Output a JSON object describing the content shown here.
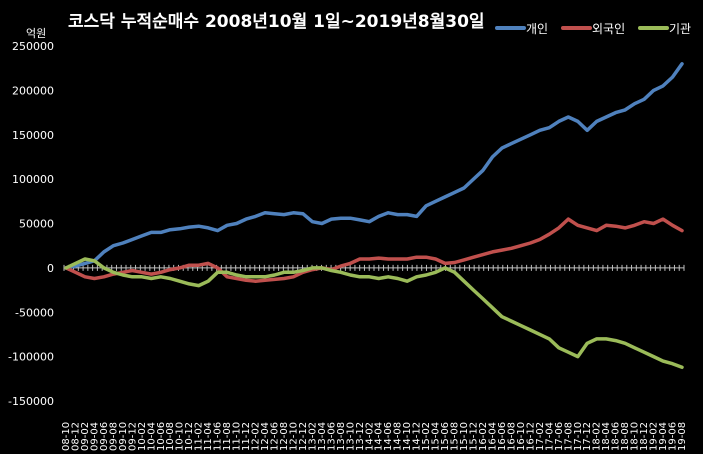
{
  "chart_data": {
    "type": "line",
    "title": "코스닥 누적순매수 2008년10월 1일~2019년8월30일",
    "unit_label": "억원",
    "ylim": [
      -150000,
      250000
    ],
    "yticks": [
      "250000",
      "200000",
      "150000",
      "100000",
      "50000",
      "0",
      "-50000",
      "-100000",
      "-150000"
    ],
    "grid": false,
    "legend_position": "top-right",
    "x": [
      "08-10",
      "08-12",
      "09-02",
      "09-04",
      "09-06",
      "09-08",
      "09-10",
      "09-12",
      "10-02",
      "10-04",
      "10-06",
      "10-08",
      "10-10",
      "10-12",
      "11-02",
      "11-04",
      "11-06",
      "11-08",
      "11-10",
      "11-12",
      "12-02",
      "12-04",
      "12-06",
      "12-08",
      "12-10",
      "12-12",
      "13-02",
      "13-04",
      "13-06",
      "13-08",
      "13-10",
      "13-12",
      "14-02",
      "14-04",
      "14-06",
      "14-08",
      "14-10",
      "14-12",
      "15-02",
      "15-04",
      "15-06",
      "15-08",
      "15-10",
      "15-12",
      "16-02",
      "16-04",
      "16-06",
      "16-08",
      "16-10",
      "16-12",
      "17-02",
      "17-04",
      "17-06",
      "17-08",
      "17-10",
      "17-12",
      "18-02",
      "18-04",
      "18-06",
      "18-08",
      "18-10",
      "18-12",
      "19-02",
      "19-04",
      "19-06",
      "19-08"
    ],
    "series": [
      {
        "name": "개인",
        "color": "#4f81bd",
        "values": [
          0,
          2000,
          5000,
          8000,
          18000,
          25000,
          28000,
          32000,
          36000,
          40000,
          40000,
          43000,
          44000,
          46000,
          47000,
          45000,
          42000,
          48000,
          50000,
          55000,
          58000,
          62000,
          61000,
          60000,
          62000,
          61000,
          52000,
          50000,
          55000,
          56000,
          56000,
          54000,
          52000,
          58000,
          62000,
          60000,
          60000,
          58000,
          70000,
          75000,
          80000,
          85000,
          90000,
          100000,
          110000,
          125000,
          135000,
          140000,
          145000,
          150000,
          155000,
          158000,
          165000,
          170000,
          165000,
          155000,
          165000,
          170000,
          175000,
          178000,
          185000,
          190000,
          200000,
          205000,
          215000,
          230000
        ]
      },
      {
        "name": "외국인",
        "color": "#c0504d",
        "values": [
          0,
          -5000,
          -10000,
          -12000,
          -10000,
          -7000,
          -5000,
          -3000,
          -5000,
          -7000,
          -5000,
          -2000,
          0,
          3000,
          3000,
          5000,
          0,
          -10000,
          -12000,
          -14000,
          -15000,
          -14000,
          -13000,
          -12000,
          -10000,
          -5000,
          -2000,
          0,
          -2000,
          2000,
          5000,
          10000,
          10000,
          11000,
          10000,
          10000,
          10000,
          12000,
          12000,
          10000,
          5000,
          6000,
          9000,
          12000,
          15000,
          18000,
          20000,
          22000,
          25000,
          28000,
          32000,
          38000,
          45000,
          55000,
          48000,
          45000,
          42000,
          48000,
          47000,
          45000,
          48000,
          52000,
          50000,
          55000,
          48000,
          42000
        ]
      },
      {
        "name": "기관",
        "color": "#9bbb59",
        "values": [
          0,
          5000,
          10000,
          8000,
          0,
          -5000,
          -8000,
          -10000,
          -10000,
          -12000,
          -10000,
          -12000,
          -15000,
          -18000,
          -20000,
          -15000,
          -5000,
          -5000,
          -8000,
          -10000,
          -10000,
          -10000,
          -8000,
          -5000,
          -5000,
          -3000,
          0,
          0,
          -3000,
          -5000,
          -8000,
          -10000,
          -10000,
          -12000,
          -10000,
          -12000,
          -15000,
          -10000,
          -8000,
          -5000,
          0,
          -5000,
          -15000,
          -25000,
          -35000,
          -45000,
          -55000,
          -60000,
          -65000,
          -70000,
          -75000,
          -80000,
          -90000,
          -95000,
          -100000,
          -85000,
          -80000,
          -80000,
          -82000,
          -85000,
          -90000,
          -95000,
          -100000,
          -105000,
          -108000,
          -112000
        ]
      }
    ]
  }
}
